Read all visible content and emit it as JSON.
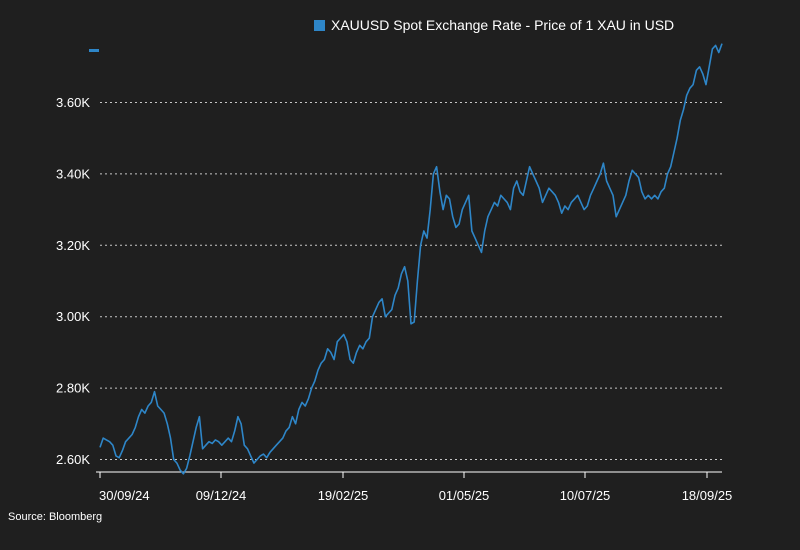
{
  "legend": {
    "label": "XAUUSD Spot Exchange Rate - Price of 1 XAU in USD",
    "color": "#2e86c8"
  },
  "source": "Source: Bloomberg",
  "colors": {
    "background": "#1f1f1f",
    "line": "#2e86c8",
    "grid": "#ffffff",
    "text": "#ffffff"
  },
  "chart_data": {
    "type": "line",
    "title": "",
    "xlabel": "",
    "ylabel": "",
    "grid": "horizontal-dotted",
    "legend_position": "top",
    "x_tick_labels": [
      "30/09/24",
      "09/12/24",
      "19/02/25",
      "01/05/25",
      "10/07/25",
      "18/09/25"
    ],
    "y_tick_values": [
      2600,
      2800,
      3000,
      3200,
      3400,
      3600
    ],
    "y_tick_labels": [
      "2.60K",
      "2.80K",
      "3.00K",
      "3.20K",
      "3.40K",
      "3.60K"
    ],
    "ylim": [
      2565,
      3775
    ],
    "series": [
      {
        "name": "XAUUSD Spot Exchange Rate - Price of 1 XAU in USD",
        "values": [
          2634,
          2660,
          2655,
          2650,
          2640,
          2610,
          2605,
          2625,
          2650,
          2660,
          2670,
          2690,
          2720,
          2740,
          2730,
          2750,
          2760,
          2790,
          2750,
          2740,
          2730,
          2700,
          2660,
          2600,
          2590,
          2570,
          2560,
          2575,
          2610,
          2650,
          2690,
          2720,
          2630,
          2640,
          2650,
          2645,
          2655,
          2650,
          2640,
          2650,
          2660,
          2650,
          2680,
          2720,
          2700,
          2640,
          2630,
          2610,
          2590,
          2600,
          2610,
          2615,
          2605,
          2620,
          2630,
          2640,
          2650,
          2660,
          2680,
          2690,
          2720,
          2700,
          2740,
          2760,
          2750,
          2770,
          2800,
          2820,
          2850,
          2870,
          2880,
          2910,
          2900,
          2880,
          2930,
          2940,
          2950,
          2930,
          2880,
          2870,
          2900,
          2920,
          2910,
          2930,
          2940,
          3000,
          3020,
          3040,
          3050,
          3000,
          3010,
          3020,
          3060,
          3080,
          3120,
          3140,
          3100,
          2980,
          2985,
          3100,
          3200,
          3240,
          3220,
          3300,
          3400,
          3420,
          3350,
          3300,
          3340,
          3330,
          3280,
          3250,
          3260,
          3300,
          3320,
          3340,
          3240,
          3220,
          3200,
          3180,
          3240,
          3280,
          3300,
          3320,
          3310,
          3340,
          3330,
          3320,
          3300,
          3360,
          3380,
          3350,
          3340,
          3380,
          3420,
          3400,
          3380,
          3360,
          3320,
          3340,
          3360,
          3350,
          3340,
          3320,
          3290,
          3310,
          3300,
          3320,
          3330,
          3340,
          3320,
          3300,
          3310,
          3340,
          3360,
          3380,
          3400,
          3430,
          3380,
          3360,
          3340,
          3280,
          3300,
          3320,
          3340,
          3380,
          3410,
          3400,
          3390,
          3350,
          3330,
          3340,
          3330,
          3340,
          3330,
          3350,
          3360,
          3400,
          3420,
          3460,
          3500,
          3550,
          3580,
          3620,
          3640,
          3650,
          3690,
          3700,
          3680,
          3650,
          3700,
          3750,
          3760,
          3740,
          3765
        ]
      }
    ]
  }
}
